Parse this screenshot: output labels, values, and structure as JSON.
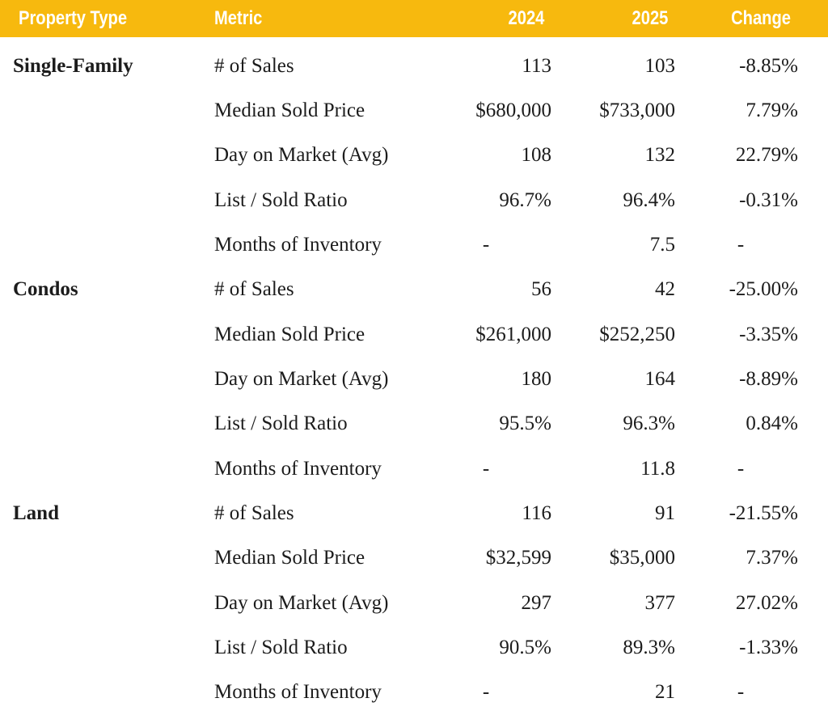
{
  "colors": {
    "header_bg": "#F7B90E",
    "header_text": "#FFFFFF",
    "body_text": "#1C1C1C"
  },
  "chart_data": {
    "type": "table",
    "columns": [
      "Property Type",
      "Metric",
      "2024",
      "2025",
      "Change"
    ],
    "rows": [
      {
        "property": "Single-Family",
        "metric": "# of Sales",
        "y2024": "113",
        "y2025": "103",
        "change": "-8.85%"
      },
      {
        "property": "",
        "metric": "Median Sold Price",
        "y2024": "$680,000",
        "y2025": "$733,000",
        "change": "7.79%"
      },
      {
        "property": "",
        "metric": "Day on Market (Avg)",
        "y2024": "108",
        "y2025": "132",
        "change": "22.79%"
      },
      {
        "property": "",
        "metric": "List / Sold Ratio",
        "y2024": "96.7%",
        "y2025": "96.4%",
        "change": "-0.31%"
      },
      {
        "property": "",
        "metric": "Months of Inventory",
        "y2024": "-",
        "y2025": "7.5",
        "change": "-"
      },
      {
        "property": "Condos",
        "metric": "# of Sales",
        "y2024": "56",
        "y2025": "42",
        "change": "-25.00%"
      },
      {
        "property": "",
        "metric": "Median Sold Price",
        "y2024": "$261,000",
        "y2025": "$252,250",
        "change": "-3.35%"
      },
      {
        "property": "",
        "metric": "Day on Market (Avg)",
        "y2024": "180",
        "y2025": "164",
        "change": "-8.89%"
      },
      {
        "property": "",
        "metric": "List / Sold Ratio",
        "y2024": "95.5%",
        "y2025": "96.3%",
        "change": "0.84%"
      },
      {
        "property": "",
        "metric": "Months of Inventory",
        "y2024": "-",
        "y2025": "11.8",
        "change": "-"
      },
      {
        "property": "Land",
        "metric": "# of Sales",
        "y2024": "116",
        "y2025": "91",
        "change": "-21.55%"
      },
      {
        "property": "",
        "metric": "Median Sold Price",
        "y2024": "$32,599",
        "y2025": "$35,000",
        "change": "7.37%"
      },
      {
        "property": "",
        "metric": "Day on Market (Avg)",
        "y2024": "297",
        "y2025": "377",
        "change": "27.02%"
      },
      {
        "property": "",
        "metric": "List / Sold Ratio",
        "y2024": "90.5%",
        "y2025": "89.3%",
        "change": "-1.33%"
      },
      {
        "property": "",
        "metric": "Months of Inventory",
        "y2024": "-",
        "y2025": "21",
        "change": "-"
      }
    ]
  }
}
